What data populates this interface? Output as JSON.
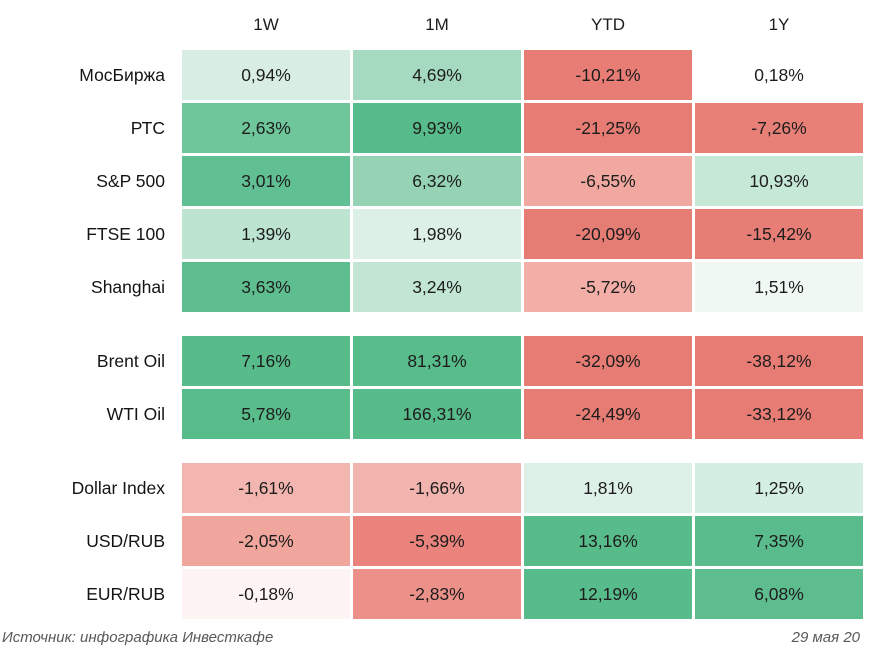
{
  "header": {
    "columns": [
      "1W",
      "1M",
      "YTD",
      "1Y"
    ]
  },
  "palette": {
    "positive_max": "#57bb8a",
    "negative_max": "#e67c73",
    "neutral": "#ffffff",
    "text": "#1d1d1d",
    "footer_text": "#595959"
  },
  "table": {
    "sections": [
      {
        "name": "indices",
        "rows": [
          {
            "label": "МосБиржа",
            "cells": [
              {
                "value": "0,94%",
                "bg": "#d9eee3"
              },
              {
                "value": "4,69%",
                "bg": "#a6dac0"
              },
              {
                "value": "-10,21%",
                "bg": "#e77d74"
              },
              {
                "value": "0,18%",
                "bg": "#ffffff"
              }
            ]
          },
          {
            "label": "РТС",
            "cells": [
              {
                "value": "2,63%",
                "bg": "#6fc69b"
              },
              {
                "value": "9,93%",
                "bg": "#58bb8b"
              },
              {
                "value": "-21,25%",
                "bg": "#e67c73"
              },
              {
                "value": "-7,26%",
                "bg": "#e88077"
              }
            ]
          },
          {
            "label": "S&P 500",
            "cells": [
              {
                "value": "3,01%",
                "bg": "#61c093"
              },
              {
                "value": "6,32%",
                "bg": "#95d3b4"
              },
              {
                "value": "-6,55%",
                "bg": "#f0a8a0"
              },
              {
                "value": "10,93%",
                "bg": "#c6e8d6"
              }
            ]
          },
          {
            "label": "FTSE 100",
            "cells": [
              {
                "value": "1,39%",
                "bg": "#bce4d0"
              },
              {
                "value": "1,98%",
                "bg": "#ddf0e6"
              },
              {
                "value": "-20,09%",
                "bg": "#e67d74"
              },
              {
                "value": "-15,42%",
                "bg": "#e77e75"
              }
            ]
          },
          {
            "label": "Shanghai",
            "cells": [
              {
                "value": "3,63%",
                "bg": "#5ebe90"
              },
              {
                "value": "3,24%",
                "bg": "#c2e6d3"
              },
              {
                "value": "-5,72%",
                "bg": "#f2aea7"
              },
              {
                "value": "1,51%",
                "bg": "#eff8f3"
              }
            ]
          }
        ]
      },
      {
        "name": "oil",
        "rows": [
          {
            "label": "Brent Oil",
            "cells": [
              {
                "value": "7,16%",
                "bg": "#57bb8a"
              },
              {
                "value": "81,31%",
                "bg": "#58bc8b"
              },
              {
                "value": "-32,09%",
                "bg": "#e67c73"
              },
              {
                "value": "-38,12%",
                "bg": "#e67c73"
              }
            ]
          },
          {
            "label": "WTI Oil",
            "cells": [
              {
                "value": "5,78%",
                "bg": "#58bc8b"
              },
              {
                "value": "166,31%",
                "bg": "#57bb8a"
              },
              {
                "value": "-24,49%",
                "bg": "#e67c73"
              },
              {
                "value": "-33,12%",
                "bg": "#e67c73"
              }
            ]
          }
        ]
      },
      {
        "name": "currencies",
        "rows": [
          {
            "label": "Dollar Index",
            "cells": [
              {
                "value": "-1,61%",
                "bg": "#f2b5af"
              },
              {
                "value": "-1,66%",
                "bg": "#f2b4ae"
              },
              {
                "value": "1,81%",
                "bg": "#def1e8"
              },
              {
                "value": "1,25%",
                "bg": "#d5eee2"
              }
            ]
          },
          {
            "label": "USD/RUB",
            "cells": [
              {
                "value": "-2,05%",
                "bg": "#f0a59d"
              },
              {
                "value": "-5,39%",
                "bg": "#e9837b"
              },
              {
                "value": "13,16%",
                "bg": "#57bb8a"
              },
              {
                "value": "7,35%",
                "bg": "#5abc8c"
              }
            ]
          },
          {
            "label": "EUR/RUB",
            "cells": [
              {
                "value": "-0,18%",
                "bg": "#fdf4f3"
              },
              {
                "value": "-2,83%",
                "bg": "#ec9189"
              },
              {
                "value": "12,19%",
                "bg": "#58bb8b"
              },
              {
                "value": "6,08%",
                "bg": "#5dbd8e"
              }
            ]
          }
        ]
      }
    ]
  },
  "footer": {
    "source": "Источник: инфографика Инвесткафе",
    "date": "29 мая 20"
  },
  "chart_data": {
    "type": "heatmap",
    "title": "",
    "columns": [
      "1W",
      "1M",
      "YTD",
      "1Y"
    ],
    "rows": [
      "МосБиржа",
      "РТС",
      "S&P 500",
      "FTSE 100",
      "Shanghai",
      "Brent Oil",
      "WTI Oil",
      "Dollar Index",
      "USD/RUB",
      "EUR/RUB"
    ],
    "row_groups": [
      [
        "МосБиржа",
        "РТС",
        "S&P 500",
        "FTSE 100",
        "Shanghai"
      ],
      [
        "Brent Oil",
        "WTI Oil"
      ],
      [
        "Dollar Index",
        "USD/RUB",
        "EUR/RUB"
      ]
    ],
    "values_pct": [
      [
        0.94,
        4.69,
        -10.21,
        0.18
      ],
      [
        2.63,
        9.93,
        -21.25,
        -7.26
      ],
      [
        3.01,
        6.32,
        -6.55,
        10.93
      ],
      [
        1.39,
        1.98,
        -20.09,
        -15.42
      ],
      [
        3.63,
        3.24,
        -5.72,
        1.51
      ],
      [
        7.16,
        81.31,
        -32.09,
        -38.12
      ],
      [
        5.78,
        166.31,
        -24.49,
        -33.12
      ],
      [
        -1.61,
        -1.66,
        1.81,
        1.25
      ],
      [
        -2.05,
        -5.39,
        13.16,
        7.35
      ],
      [
        -0.18,
        -2.83,
        12.19,
        6.08
      ]
    ],
    "color_scale": {
      "positive": "#57bb8a",
      "neutral": "#ffffff",
      "negative": "#e67c73"
    },
    "legend": "none",
    "annotations": [
      "Источник: инфографика Инвесткафе",
      "29 мая 20"
    ]
  }
}
